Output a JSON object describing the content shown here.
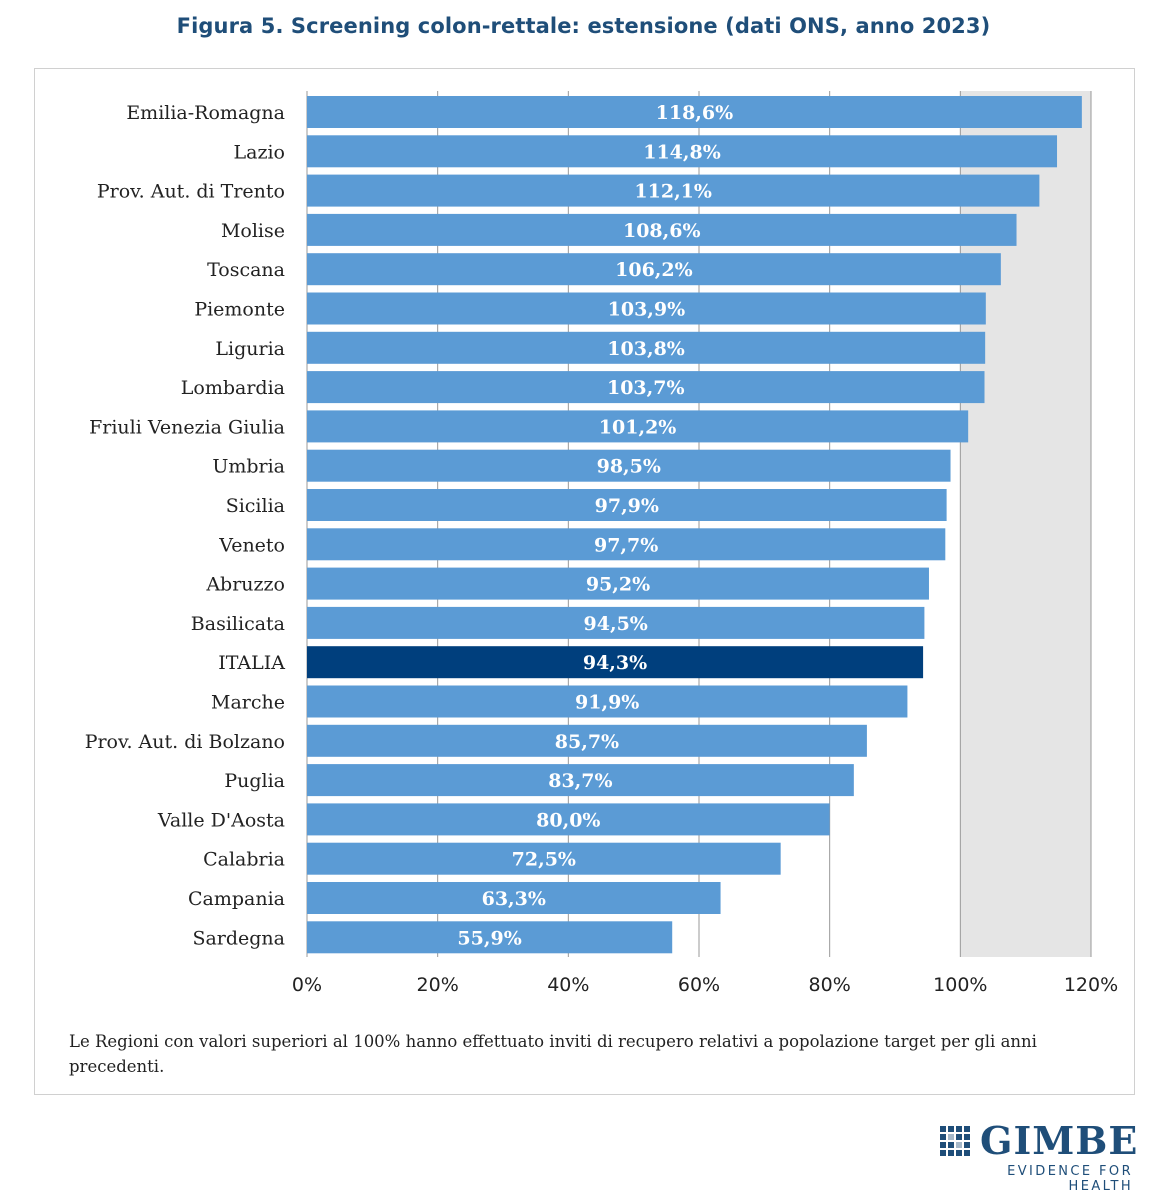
{
  "title": "Figura 5. Screening colon-rettale: estensione (dati ONS, anno 2023)",
  "note": "Le Regioni con valori superiori al 100% hanno effettuato inviti di recupero relativi a popolazione target per gli anni precedenti.",
  "logo": {
    "name": "GIMBE",
    "tagline": "EVIDENCE FOR HEALTH"
  },
  "colors": {
    "bar": "#5b9bd5",
    "highlight": "#003f7d",
    "plot_bg": "#e5e5e5",
    "grid": "#999999"
  },
  "chart_data": {
    "type": "bar",
    "orientation": "horizontal",
    "categories": [
      "Emilia-Romagna",
      "Lazio",
      "Prov. Aut. di Trento",
      "Molise",
      "Toscana",
      "Piemonte",
      "Liguria",
      "Lombardia",
      "Friuli Venezia Giulia",
      "Umbria",
      "Sicilia",
      "Veneto",
      "Abruzzo",
      "Basilicata",
      "ITALIA",
      "Marche",
      "Prov. Aut. di Bolzano",
      "Puglia",
      "Valle D'Aosta",
      "Calabria",
      "Campania",
      "Sardegna"
    ],
    "values": [
      118.6,
      114.8,
      112.1,
      108.6,
      106.2,
      103.9,
      103.8,
      103.7,
      101.2,
      98.5,
      97.9,
      97.7,
      95.2,
      94.5,
      94.3,
      91.9,
      85.7,
      83.7,
      80.0,
      72.5,
      63.3,
      55.9
    ],
    "value_labels": [
      "118,6%",
      "114,8%",
      "112,1%",
      "108,6%",
      "106,2%",
      "103,9%",
      "103,8%",
      "103,7%",
      "101,2%",
      "98,5%",
      "97,9%",
      "97,7%",
      "95,2%",
      "94,5%",
      "94,3%",
      "91,9%",
      "85,7%",
      "83,7%",
      "80,0%",
      "72,5%",
      "63,3%",
      "55,9%"
    ],
    "highlight": "ITALIA",
    "xlim": [
      0,
      120
    ],
    "xticks": [
      "0%",
      "20%",
      "40%",
      "60%",
      "80%",
      "100%",
      "120%"
    ],
    "shaded_region": [
      100,
      120
    ],
    "grid": true
  }
}
